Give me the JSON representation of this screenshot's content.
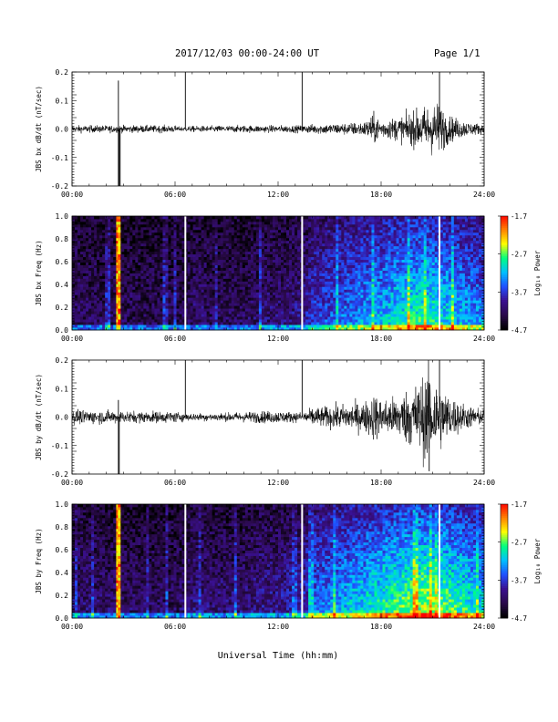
{
  "header": {
    "date_range": "2017/12/03  00:00-24:00 UT",
    "page": "Page 1/1"
  },
  "xlabel": "Universal Time (hh:mm)",
  "colors": {
    "trace": "#000000",
    "gap_line": "#ffffff",
    "colormap": [
      "#000000",
      "#2a0a4a",
      "#3a1090",
      "#2050ff",
      "#00c0ff",
      "#00ff80",
      "#ffff00",
      "#ff8000",
      "#ff0000"
    ]
  },
  "chart_data": [
    {
      "type": "line",
      "ylabel": "JBS bx dB/dt (nT/sec)",
      "ylim": [
        -0.2,
        0.2
      ],
      "yticks": [
        0.2,
        0.1,
        0.0,
        -0.1,
        -0.2
      ],
      "yticklabels": [
        "0.2",
        "0.1",
        "0.0",
        "-0.1",
        "-0.2"
      ],
      "xlim": [
        0,
        24
      ],
      "xticks": [
        0,
        6,
        12,
        18,
        24
      ],
      "xticklabels": [
        "00:00",
        "06:00",
        "12:00",
        "18:00",
        "24:00"
      ],
      "baseline_noise": 0.006,
      "noise_envelope": {
        "hours": [
          0,
          6,
          6.2,
          7,
          10,
          12,
          13.4,
          14,
          16,
          17,
          17.6,
          18,
          19,
          20,
          20.7,
          21.3,
          22,
          23,
          24
        ],
        "amplitude": [
          0.006,
          0.006,
          0.004,
          0.005,
          0.006,
          0.006,
          0.006,
          0.008,
          0.01,
          0.012,
          0.025,
          0.015,
          0.02,
          0.03,
          0.04,
          0.045,
          0.022,
          0.012,
          0.008
        ]
      },
      "spikes": [
        {
          "hour": 2.7,
          "min": -0.2,
          "max": 0.17
        },
        {
          "hour": 2.75,
          "min": -0.2,
          "max": 0.0
        },
        {
          "hour": 2.8,
          "min": -0.2,
          "max": 0.0
        },
        {
          "hour": 6.6,
          "min": 0.0,
          "max": 0.2
        },
        {
          "hour": 13.4,
          "min": 0.0,
          "max": 0.2
        },
        {
          "hour": 21.4,
          "min": 0.0,
          "max": 0.2
        }
      ]
    },
    {
      "type": "heatmap",
      "ylabel": "JBS bx Freq (Hz)",
      "ylim": [
        0.0,
        1.0
      ],
      "yticks": [
        1.0,
        0.8,
        0.6,
        0.4,
        0.2,
        0.0
      ],
      "yticklabels": [
        "1.0",
        "0.8",
        "0.6",
        "0.4",
        "0.2",
        "0.0"
      ],
      "xlim": [
        0,
        24
      ],
      "xticks": [
        0,
        6,
        12,
        18,
        24
      ],
      "xticklabels": [
        "00:00",
        "06:00",
        "12:00",
        "18:00",
        "24:00"
      ],
      "colorbar": {
        "label": "Log₁₀ Power",
        "range": [
          -4.7,
          -1.7
        ],
        "ticks": [
          -1.7,
          -2.7,
          -3.7,
          -4.7
        ],
        "ticklabels": [
          "-1.7",
          "-2.7",
          "-3.7",
          "-4.7"
        ]
      },
      "gaps_hours": [
        6.6,
        13.4,
        21.4
      ],
      "bright_column_hours": [
        2.65,
        2.75
      ],
      "activity_profile": {
        "hours": [
          0,
          6,
          7.5,
          8,
          10,
          11,
          12,
          13.5,
          14,
          16,
          18,
          19.5,
          20.5,
          22,
          24
        ],
        "level": [
          0.16,
          0.14,
          0.2,
          0.16,
          0.16,
          0.2,
          0.2,
          0.24,
          0.34,
          0.44,
          0.52,
          0.6,
          0.65,
          0.55,
          0.45
        ]
      }
    },
    {
      "type": "line",
      "ylabel": "JBS by dB/dt (nT/sec)",
      "ylim": [
        -0.2,
        0.2
      ],
      "yticks": [
        0.2,
        0.1,
        0.0,
        -0.1,
        -0.2
      ],
      "yticklabels": [
        "0.2",
        "0.1",
        "0.0",
        "-0.1",
        "-0.2"
      ],
      "xlim": [
        0,
        24
      ],
      "xticks": [
        0,
        6,
        12,
        18,
        24
      ],
      "xticklabels": [
        "00:00",
        "06:00",
        "12:00",
        "18:00",
        "24:00"
      ],
      "baseline_noise": 0.012,
      "noise_envelope": {
        "hours": [
          0,
          3,
          6,
          6.8,
          9,
          11,
          12,
          13.4,
          14,
          15.5,
          17,
          17.6,
          18,
          19,
          20.2,
          20.7,
          21.3,
          22,
          23,
          24
        ],
        "amplitude": [
          0.012,
          0.01,
          0.009,
          0.006,
          0.007,
          0.01,
          0.01,
          0.008,
          0.015,
          0.02,
          0.025,
          0.04,
          0.03,
          0.035,
          0.06,
          0.08,
          0.06,
          0.035,
          0.02,
          0.012
        ]
      },
      "spikes": [
        {
          "hour": 2.7,
          "min": -0.2,
          "max": 0.06
        },
        {
          "hour": 2.75,
          "min": -0.2,
          "max": 0.0
        },
        {
          "hour": 6.6,
          "min": 0.0,
          "max": 0.2
        },
        {
          "hour": 13.4,
          "min": 0.0,
          "max": 0.2
        },
        {
          "hour": 20.8,
          "min": -0.19,
          "max": 0.12
        },
        {
          "hour": 21.4,
          "min": 0.0,
          "max": 0.2
        }
      ]
    },
    {
      "type": "heatmap",
      "ylabel": "JBS by Freq (Hz)",
      "ylim": [
        0.0,
        1.0
      ],
      "yticks": [
        1.0,
        0.8,
        0.6,
        0.4,
        0.2,
        0.0
      ],
      "yticklabels": [
        "1.0",
        "0.8",
        "0.6",
        "0.4",
        "0.2",
        "0.0"
      ],
      "xlim": [
        0,
        24
      ],
      "xticks": [
        0,
        6,
        12,
        18,
        24
      ],
      "xticklabels": [
        "00:00",
        "06:00",
        "12:00",
        "18:00",
        "24:00"
      ],
      "colorbar": {
        "label": "Log₁₀ Power",
        "range": [
          -4.7,
          -1.7
        ],
        "ticks": [
          -1.7,
          -2.7,
          -3.7,
          -4.7
        ],
        "ticklabels": [
          "-1.7",
          "-2.7",
          "-3.7",
          "-4.7"
        ]
      },
      "gaps_hours": [
        6.6,
        13.4,
        21.4
      ],
      "bright_column_hours": [
        2.65,
        2.75
      ],
      "activity_profile": {
        "hours": [
          0,
          6,
          7.5,
          8,
          10,
          11,
          12,
          13.5,
          14,
          16,
          18,
          19.5,
          20.5,
          22,
          24
        ],
        "level": [
          0.2,
          0.16,
          0.24,
          0.2,
          0.2,
          0.24,
          0.24,
          0.3,
          0.42,
          0.52,
          0.62,
          0.7,
          0.75,
          0.68,
          0.55
        ]
      }
    }
  ]
}
